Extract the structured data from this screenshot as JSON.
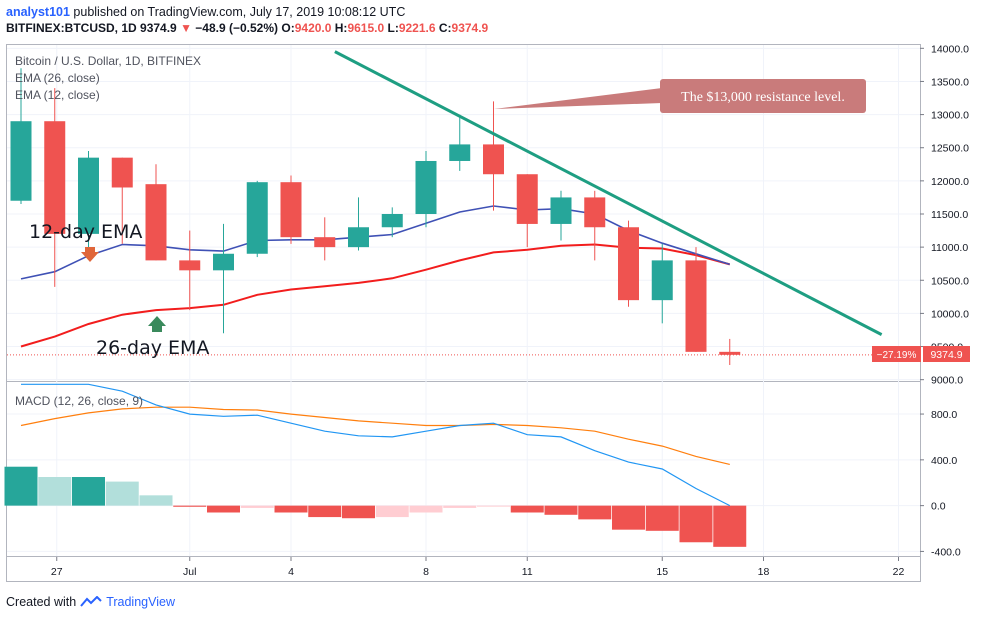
{
  "header": {
    "author": "analyst101",
    "published_text": "published on TradingView.com, July 17, 2019 10:08:12 UTC",
    "symbol": "BITFINEX:BTCUSD, 1D",
    "last": "9374.9",
    "change": "−48.9 (−0.52%)",
    "o_label": "O:",
    "o": "9420.0",
    "h_label": "H:",
    "h": "9615.0",
    "l_label": "L:",
    "l": "9221.6",
    "c_label": "C:",
    "c": "9374.9"
  },
  "legend": {
    "title": "Bitcoin / U.S. Dollar, 1D, BITFINEX",
    "ema26": "EMA (26, close)",
    "ema12": "EMA (12, close)",
    "macd": "MACD (12, 26, close, 9)"
  },
  "annotations": {
    "resistance": "The $13,000 resistance level.",
    "ema12_label": "12-day EMA",
    "ema26_label": "26-day EMA"
  },
  "price_tag": {
    "pct": "−27.19%",
    "price": "9374.9"
  },
  "footer": {
    "created_with": "Created with",
    "brand": "TradingView"
  },
  "colors": {
    "up": "#26a69a",
    "down": "#ef5350",
    "ema12": "#3f51b5",
    "ema26": "#f21d1d",
    "trend": "#1e9e82",
    "macd": "#2196f3",
    "signal": "#ff7f0e",
    "callout": "#c97b7b"
  },
  "chart_data": [
    {
      "type": "candlestick",
      "title": "Bitcoin / U.S. Dollar, 1D, BITFINEX",
      "x_tick_labels": [
        "27",
        "Jul",
        "4",
        "8",
        "11",
        "15",
        "18",
        "22"
      ],
      "y_ticks": [
        9000,
        9500,
        10000,
        10500,
        11000,
        11500,
        12000,
        12500,
        13000,
        13500,
        14000
      ],
      "y_tick_labels": [
        "9000.0",
        "9500.0",
        "10000.0",
        "10500.0",
        "11000.0",
        "11500.0",
        "12000.0",
        "12500.0",
        "13000.0",
        "13500.0",
        "14000.0"
      ],
      "ylim": [
        8980,
        14050
      ],
      "candles": [
        {
          "o": 11700,
          "h": 13700,
          "l": 11650,
          "c": 12900
        },
        {
          "o": 12900,
          "h": 13400,
          "l": 10400,
          "c": 11200
        },
        {
          "o": 11200,
          "h": 12450,
          "l": 10950,
          "c": 12350
        },
        {
          "o": 12350,
          "h": 12350,
          "l": 11050,
          "c": 11900
        },
        {
          "o": 11950,
          "h": 12250,
          "l": 10800,
          "c": 10800
        },
        {
          "o": 10800,
          "h": 11250,
          "l": 10050,
          "c": 10650
        },
        {
          "o": 10650,
          "h": 11350,
          "l": 9700,
          "c": 10900
        },
        {
          "o": 10900,
          "h": 12000,
          "l": 10850,
          "c": 11980
        },
        {
          "o": 11980,
          "h": 12080,
          "l": 11050,
          "c": 11150
        },
        {
          "o": 11150,
          "h": 11450,
          "l": 10800,
          "c": 11000
        },
        {
          "o": 11000,
          "h": 11750,
          "l": 10950,
          "c": 11300
        },
        {
          "o": 11300,
          "h": 11600,
          "l": 11150,
          "c": 11500
        },
        {
          "o": 11500,
          "h": 12450,
          "l": 11300,
          "c": 12300
        },
        {
          "o": 12300,
          "h": 13000,
          "l": 12150,
          "c": 12550
        },
        {
          "o": 12550,
          "h": 13200,
          "l": 11550,
          "c": 12100
        },
        {
          "o": 12100,
          "h": 12100,
          "l": 11000,
          "c": 11350
        },
        {
          "o": 11350,
          "h": 11850,
          "l": 11100,
          "c": 11750
        },
        {
          "o": 11750,
          "h": 11850,
          "l": 10800,
          "c": 11300
        },
        {
          "o": 11300,
          "h": 11400,
          "l": 10100,
          "c": 10200
        },
        {
          "o": 10200,
          "h": 11050,
          "l": 9850,
          "c": 10800
        },
        {
          "o": 10800,
          "h": 11000,
          "l": 9420,
          "c": 9420
        },
        {
          "o": 9420,
          "h": 9615,
          "l": 9221.6,
          "c": 9374.9
        }
      ],
      "ema12": [
        10520,
        10630,
        10870,
        11040,
        11020,
        10960,
        10940,
        11100,
        11110,
        11110,
        11150,
        11190,
        11360,
        11530,
        11620,
        11560,
        11580,
        11500,
        11250,
        11060,
        10900,
        10740
      ],
      "ema26": [
        9500,
        9650,
        9840,
        9980,
        10050,
        10080,
        10130,
        10280,
        10360,
        10410,
        10460,
        10530,
        10660,
        10800,
        10920,
        10960,
        11020,
        11040,
        10990,
        10980,
        10880,
        10740
      ],
      "trendline": {
        "from_index": 9.3,
        "from_value": 13950,
        "to_index": 25.5,
        "to_value": 9680
      },
      "last_price_line": 9374.9
    },
    {
      "type": "bar",
      "title": "MACD (12, 26, close, 9)",
      "y_ticks": [
        -400,
        0,
        400,
        800
      ],
      "y_tick_labels": [
        "-400.0",
        "0.0",
        "400.0",
        "800.0"
      ],
      "ylim": [
        -440,
        1080
      ],
      "histogram": [
        340,
        250,
        250,
        210,
        90,
        -10,
        -60,
        -20,
        -60,
        -100,
        -110,
        -100,
        -60,
        -20,
        -5,
        -60,
        -80,
        -120,
        -210,
        -220,
        -320,
        -360
      ],
      "macd": [
        1060,
        1060,
        1060,
        1000,
        880,
        800,
        780,
        790,
        720,
        650,
        610,
        600,
        650,
        700,
        720,
        620,
        600,
        480,
        380,
        320,
        150,
        0
      ],
      "signal": [
        700,
        760,
        810,
        845,
        860,
        860,
        840,
        835,
        800,
        770,
        740,
        720,
        700,
        700,
        710,
        700,
        680,
        650,
        580,
        520,
        430,
        360
      ]
    }
  ]
}
